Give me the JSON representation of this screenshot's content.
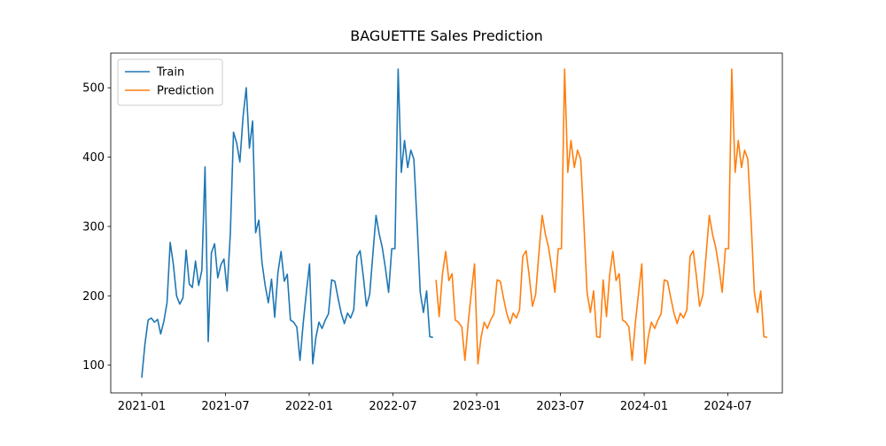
{
  "chart_data": {
    "type": "line",
    "title": "BAGUETTE Sales Prediction",
    "xlim": [
      2020.815,
      2024.825
    ],
    "ylim": [
      60,
      550
    ],
    "xticks": [
      {
        "value": 2021.0,
        "label": "2021-01"
      },
      {
        "value": 2021.5,
        "label": "2021-07"
      },
      {
        "value": 2022.0,
        "label": "2022-01"
      },
      {
        "value": 2022.5,
        "label": "2022-07"
      },
      {
        "value": 2023.0,
        "label": "2023-01"
      },
      {
        "value": 2023.5,
        "label": "2023-07"
      },
      {
        "value": 2024.0,
        "label": "2024-01"
      },
      {
        "value": 2024.5,
        "label": "2024-07"
      }
    ],
    "yticks": [
      100,
      200,
      300,
      400,
      500
    ],
    "legend": "upper left",
    "series": [
      {
        "name": "Train",
        "color": "#1f77b4",
        "x": [
          2021.0,
          2021.019,
          2021.038,
          2021.057,
          2021.076,
          2021.095,
          2021.113,
          2021.132,
          2021.151,
          2021.17,
          2021.189,
          2021.208,
          2021.227,
          2021.246,
          2021.265,
          2021.284,
          2021.302,
          2021.321,
          2021.34,
          2021.359,
          2021.378,
          2021.397,
          2021.416,
          2021.435,
          2021.454,
          2021.473,
          2021.491,
          2021.51,
          2021.529,
          2021.548,
          2021.567,
          2021.586,
          2021.605,
          2021.624,
          2021.643,
          2021.662,
          2021.68,
          2021.699,
          2021.718,
          2021.737,
          2021.756,
          2021.775,
          2021.794,
          2021.813,
          2021.832,
          2021.851,
          2021.869,
          2021.888,
          2021.907,
          2021.926,
          2021.945,
          2021.964,
          2021.983,
          2022.002,
          2022.021,
          2022.04,
          2022.058,
          2022.077,
          2022.096,
          2022.115,
          2022.134,
          2022.153,
          2022.172,
          2022.191,
          2022.21,
          2022.229,
          2022.247,
          2022.266,
          2022.285,
          2022.304,
          2022.323,
          2022.342,
          2022.361,
          2022.38,
          2022.399,
          2022.418,
          2022.436,
          2022.455,
          2022.474,
          2022.493,
          2022.512,
          2022.531,
          2022.55,
          2022.569,
          2022.588,
          2022.607,
          2022.625,
          2022.644,
          2022.663,
          2022.682,
          2022.701,
          2022.72,
          2022.739
        ],
        "values": [
          82,
          130,
          165,
          168,
          162,
          166,
          145,
          163,
          190,
          277,
          245,
          200,
          188,
          197,
          266,
          217,
          212,
          250,
          215,
          237,
          386,
          134,
          262,
          275,
          226,
          245,
          253,
          207,
          290,
          436,
          420,
          393,
          458,
          500,
          413,
          452,
          291,
          309,
          248,
          215,
          190,
          224,
          169,
          233,
          264,
          221,
          231,
          165,
          162,
          155,
          107,
          160,
          205,
          246,
          102,
          140,
          162,
          153,
          165,
          174,
          223,
          221,
          197,
          175,
          160,
          175,
          168,
          180,
          257,
          265,
          228,
          185,
          202,
          260,
          316,
          289,
          270,
          240,
          205,
          268,
          268,
          527,
          378,
          424,
          385,
          410,
          397,
          305,
          205,
          176,
          207,
          141,
          140
        ]
      },
      {
        "name": "Prediction",
        "color": "#ff7f0e",
        "x": [
          2022.757,
          2022.776,
          2022.795,
          2022.815,
          2022.834,
          2022.853,
          2022.872,
          2022.891,
          2022.911,
          2022.93,
          2022.949,
          2022.968,
          2022.987,
          2023.007,
          2023.026,
          2023.045,
          2023.064,
          2023.083,
          2023.103,
          2023.122,
          2023.141,
          2023.16,
          2023.179,
          2023.199,
          2023.218,
          2023.237,
          2023.256,
          2023.275,
          2023.295,
          2023.314,
          2023.333,
          2023.352,
          2023.371,
          2023.391,
          2023.41,
          2023.429,
          2023.448,
          2023.467,
          2023.487,
          2023.506,
          2023.525,
          2023.544,
          2023.563,
          2023.583,
          2023.602,
          2023.621,
          2023.64,
          2023.659,
          2023.679,
          2023.698,
          2023.717,
          2023.736,
          2023.755,
          2023.775,
          2023.794,
          2023.813,
          2023.832,
          2023.851,
          2023.871,
          2023.89,
          2023.909,
          2023.928,
          2023.947,
          2023.967,
          2023.986,
          2024.005,
          2024.024,
          2024.043,
          2024.063,
          2024.082,
          2024.101,
          2024.12,
          2024.139,
          2024.159,
          2024.178,
          2024.197,
          2024.216,
          2024.235,
          2024.255,
          2024.274,
          2024.293,
          2024.312,
          2024.331,
          2024.351,
          2024.37,
          2024.389,
          2024.408,
          2024.427,
          2024.447,
          2024.466,
          2024.485,
          2024.504,
          2024.523,
          2024.543,
          2024.562,
          2024.581,
          2024.6,
          2024.619,
          2024.639,
          2024.658,
          2024.677,
          2024.696,
          2024.715,
          2024.735
        ],
        "values": [
          223,
          170,
          230,
          264,
          222,
          232,
          165,
          162,
          155,
          107,
          160,
          205,
          246,
          102,
          140,
          162,
          153,
          165,
          174,
          223,
          221,
          197,
          175,
          160,
          175,
          168,
          180,
          257,
          265,
          228,
          185,
          202,
          260,
          316,
          289,
          270,
          240,
          205,
          268,
          268,
          527,
          378,
          424,
          385,
          410,
          397,
          305,
          205,
          176,
          207,
          141,
          140,
          223,
          170,
          230,
          264,
          222,
          232,
          165,
          162,
          155,
          107,
          160,
          205,
          246,
          102,
          140,
          162,
          153,
          165,
          174,
          223,
          221,
          197,
          175,
          160,
          175,
          168,
          180,
          257,
          265,
          228,
          185,
          202,
          260,
          316,
          289,
          270,
          240,
          205,
          268,
          268,
          527,
          378,
          424,
          385,
          410,
          397,
          305,
          205,
          176,
          207,
          141,
          140
        ]
      }
    ]
  }
}
